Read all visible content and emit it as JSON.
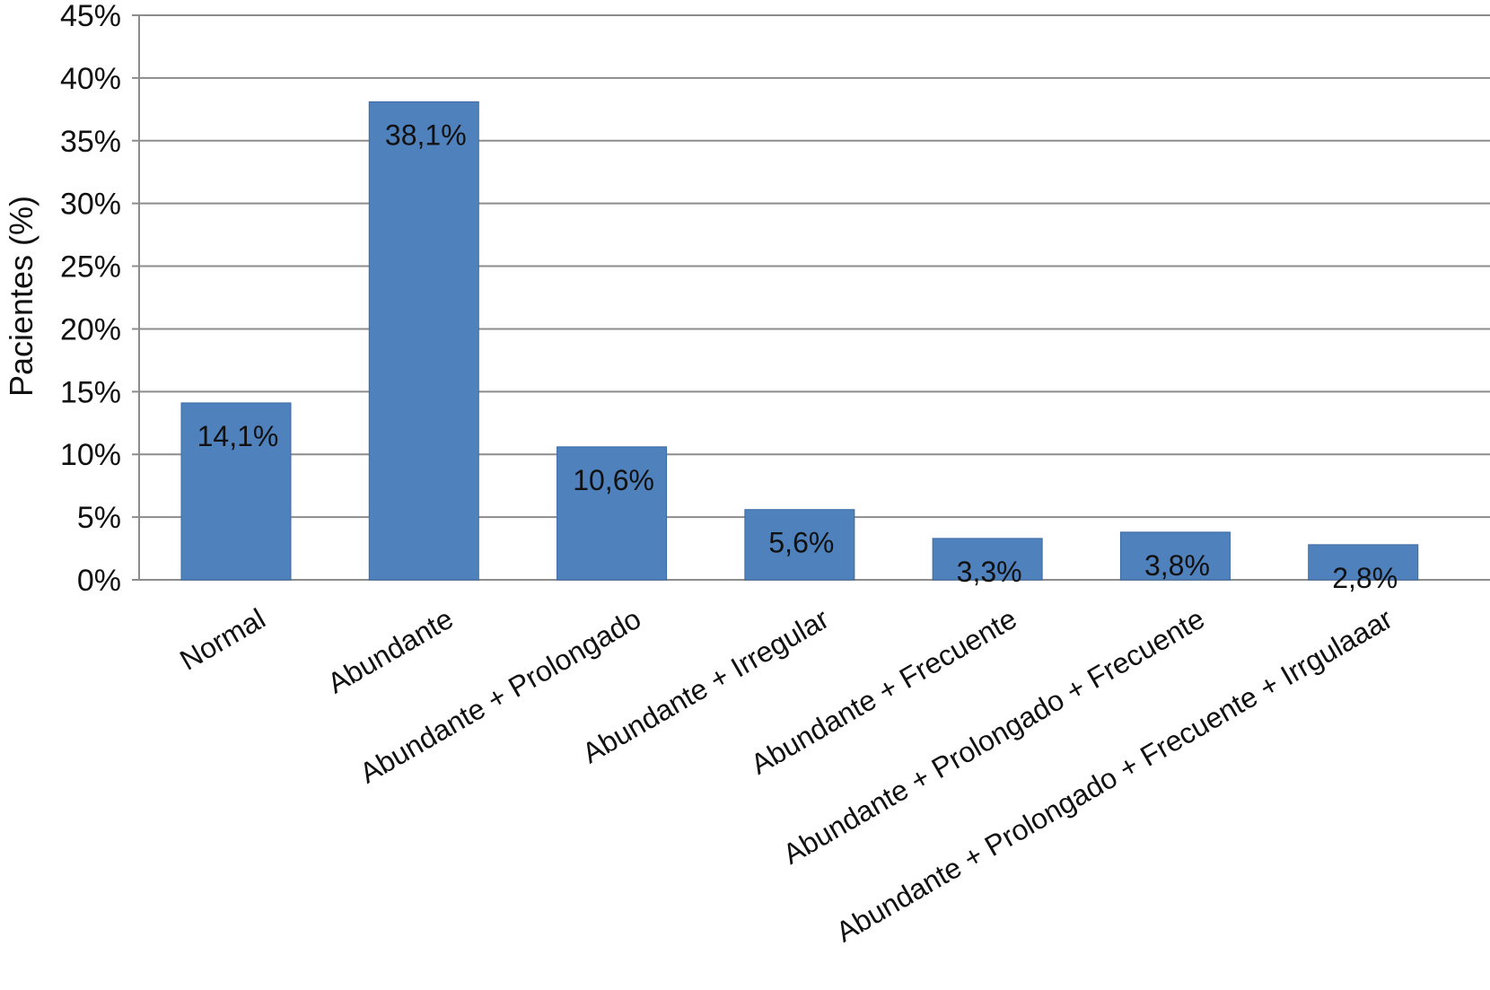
{
  "chart_data": {
    "type": "bar",
    "title": "",
    "xlabel": "",
    "ylabel": "Pacientes (%)",
    "ylim": [
      0,
      45
    ],
    "y_ticks": [
      "0%",
      "5%",
      "10%",
      "15%",
      "20%",
      "25%",
      "30%",
      "35%",
      "40%",
      "45%"
    ],
    "y_tick_values": [
      0,
      5,
      10,
      15,
      20,
      25,
      30,
      35,
      40,
      45
    ],
    "grid": true,
    "legend": "none",
    "categories": [
      "Normal",
      "Abundante",
      "Abundante + Prolongado",
      "Abundante + Irregular",
      "Abundante + Frecuente",
      "Abundante + Prolongado + Frecuente",
      "Abundante + Prolongado + Frecuente + Irrgulaaar"
    ],
    "values": [
      14.1,
      38.1,
      10.6,
      5.6,
      3.3,
      3.8,
      2.8
    ],
    "data_labels": [
      "14,1%",
      "38,1%",
      "10,6%",
      "5,6%",
      "3,3%",
      "3,8%",
      "2,8%"
    ]
  },
  "colors": {
    "bar": "#4f81bd",
    "bar_edge": "#3a6aa6",
    "grid": "#8c8c8c",
    "axis": "#8c8c8c",
    "text": "#111111"
  }
}
